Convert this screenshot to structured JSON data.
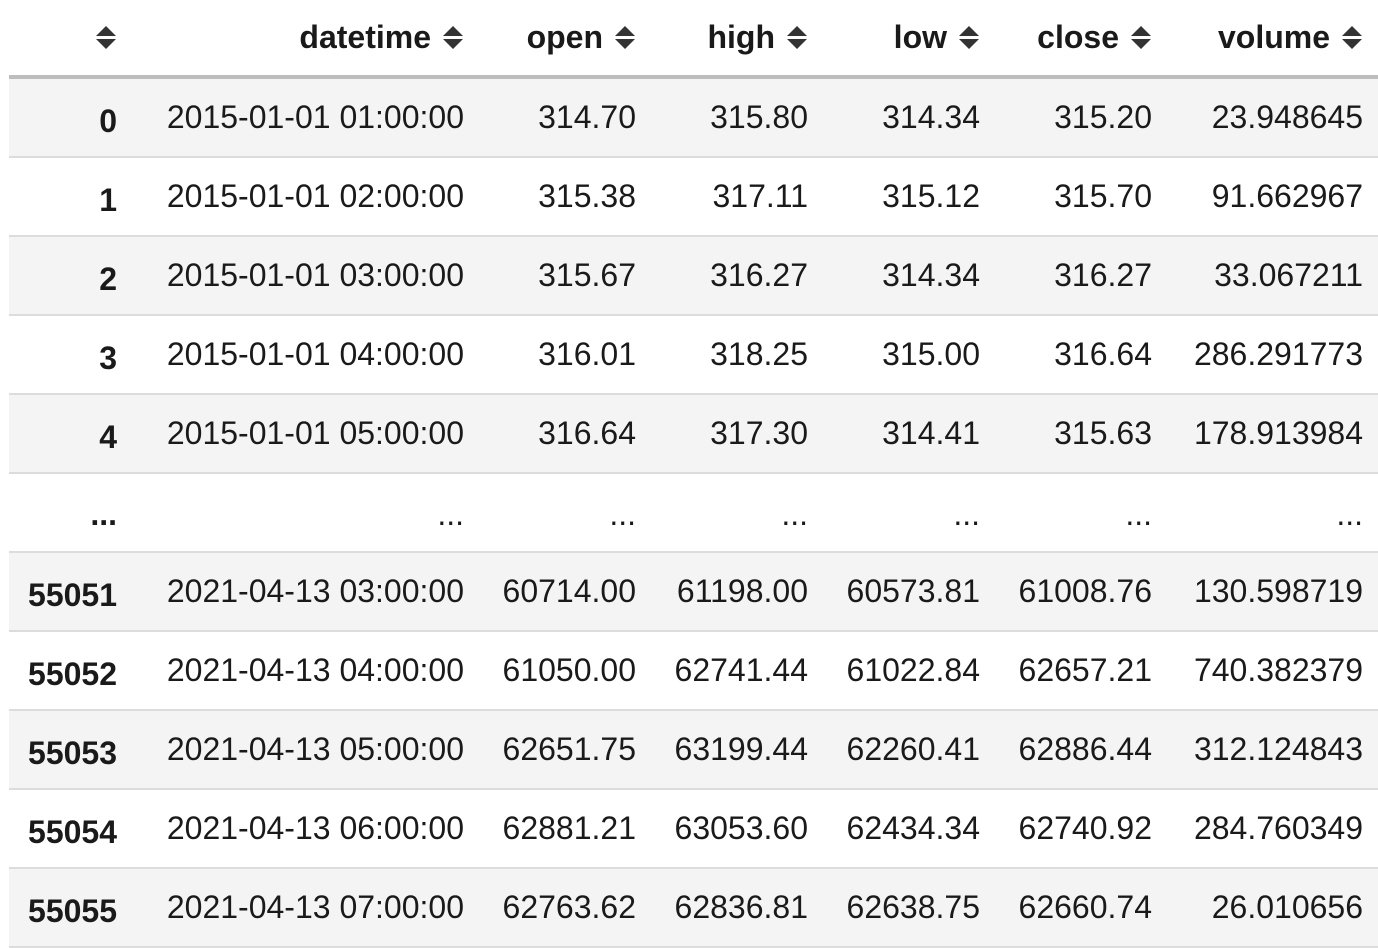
{
  "table": {
    "columns": [
      "",
      "datetime",
      "open",
      "high",
      "low",
      "close",
      "volume"
    ],
    "rows": [
      [
        "0",
        "2015-01-01 01:00:00",
        "314.70",
        "315.80",
        "314.34",
        "315.20",
        "23.948645"
      ],
      [
        "1",
        "2015-01-01 02:00:00",
        "315.38",
        "317.11",
        "315.12",
        "315.70",
        "91.662967"
      ],
      [
        "2",
        "2015-01-01 03:00:00",
        "315.67",
        "316.27",
        "314.34",
        "316.27",
        "33.067211"
      ],
      [
        "3",
        "2015-01-01 04:00:00",
        "316.01",
        "318.25",
        "315.00",
        "316.64",
        "286.291773"
      ],
      [
        "4",
        "2015-01-01 05:00:00",
        "316.64",
        "317.30",
        "314.41",
        "315.63",
        "178.913984"
      ],
      [
        "...",
        "...",
        "...",
        "...",
        "...",
        "...",
        "..."
      ],
      [
        "55051",
        "2021-04-13 03:00:00",
        "60714.00",
        "61198.00",
        "60573.81",
        "61008.76",
        "130.598719"
      ],
      [
        "55052",
        "2021-04-13 04:00:00",
        "61050.00",
        "62741.44",
        "61022.84",
        "62657.21",
        "740.382379"
      ],
      [
        "55053",
        "2021-04-13 05:00:00",
        "62651.75",
        "63199.44",
        "62260.41",
        "62886.44",
        "312.124843"
      ],
      [
        "55054",
        "2021-04-13 06:00:00",
        "62881.21",
        "63053.60",
        "62434.34",
        "62740.92",
        "284.760349"
      ],
      [
        "55055",
        "2021-04-13 07:00:00",
        "62763.62",
        "62836.81",
        "62638.75",
        "62660.74",
        "26.010656"
      ]
    ]
  },
  "icons": {
    "sort": "sort-toggle-icon"
  },
  "colors": {
    "stripe": "#f4f4f4",
    "header_border": "#bdbdbd",
    "row_border": "#dcdcdc",
    "text": "#1a1a1a"
  }
}
